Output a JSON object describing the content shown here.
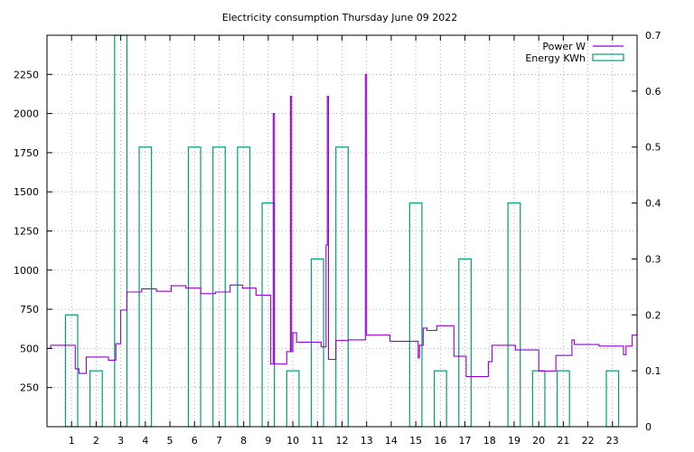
{
  "chart_data": {
    "type": "line",
    "title": "Electricity consumption Thursday June 09 2022",
    "xlim": [
      0,
      24
    ],
    "ylim_left": [
      0,
      2500
    ],
    "ylim_right": [
      0,
      0.7
    ],
    "x_ticks": [
      1,
      2,
      3,
      4,
      5,
      6,
      7,
      8,
      9,
      10,
      11,
      12,
      13,
      14,
      15,
      16,
      17,
      18,
      19,
      20,
      21,
      22,
      23
    ],
    "y_ticks_left": [
      250,
      500,
      750,
      1000,
      1250,
      1500,
      1750,
      2000,
      2250
    ],
    "y_ticks_right": [
      0,
      0.1,
      0.2,
      0.3,
      0.4,
      0.5,
      0.6,
      0.7
    ],
    "grid": true,
    "legend_position": "top-right",
    "colors": {
      "power": "#9400d3",
      "energy": "#009e73"
    },
    "series": [
      {
        "name": "Power W",
        "axis": "left",
        "style": "steps",
        "points": [
          [
            0.0,
            500
          ],
          [
            0.15,
            520
          ],
          [
            1.15,
            370
          ],
          [
            1.3,
            340
          ],
          [
            1.6,
            445
          ],
          [
            2.5,
            425
          ],
          [
            2.8,
            530
          ],
          [
            3.0,
            745
          ],
          [
            3.25,
            860
          ],
          [
            3.85,
            880
          ],
          [
            4.45,
            865
          ],
          [
            5.05,
            900
          ],
          [
            5.65,
            885
          ],
          [
            6.25,
            850
          ],
          [
            6.85,
            860
          ],
          [
            7.45,
            905
          ],
          [
            7.95,
            885
          ],
          [
            8.5,
            840
          ],
          [
            9.1,
            400
          ],
          [
            9.2,
            2000
          ],
          [
            9.25,
            400
          ],
          [
            9.75,
            480
          ],
          [
            9.9,
            2110
          ],
          [
            9.95,
            480
          ],
          [
            10.0,
            600
          ],
          [
            10.15,
            540
          ],
          [
            11.15,
            510
          ],
          [
            11.35,
            1160
          ],
          [
            11.4,
            2110
          ],
          [
            11.45,
            430
          ],
          [
            11.75,
            550
          ],
          [
            12.25,
            555
          ],
          [
            12.95,
            2250
          ],
          [
            13.0,
            585
          ],
          [
            13.95,
            545
          ],
          [
            15.1,
            440
          ],
          [
            15.15,
            520
          ],
          [
            15.3,
            630
          ],
          [
            15.45,
            615
          ],
          [
            15.85,
            645
          ],
          [
            16.55,
            450
          ],
          [
            17.05,
            320
          ],
          [
            17.95,
            415
          ],
          [
            18.1,
            520
          ],
          [
            19.05,
            490
          ],
          [
            20.0,
            355
          ],
          [
            20.7,
            455
          ],
          [
            21.35,
            555
          ],
          [
            21.45,
            525
          ],
          [
            22.45,
            515
          ],
          [
            23.45,
            460
          ],
          [
            23.55,
            515
          ],
          [
            23.8,
            585
          ],
          [
            24.0,
            585
          ]
        ]
      },
      {
        "name": "Energy KWh",
        "axis": "right",
        "style": "boxes",
        "bars": [
          [
            1,
            0.2
          ],
          [
            2,
            0.1
          ],
          [
            3,
            0.7
          ],
          [
            4,
            0.5
          ],
          [
            6,
            0.5
          ],
          [
            7,
            0.5
          ],
          [
            8,
            0.5
          ],
          [
            9,
            0.4
          ],
          [
            10,
            0.1
          ],
          [
            11,
            0.3
          ],
          [
            12,
            0.5
          ],
          [
            15,
            0.4
          ],
          [
            16,
            0.1
          ],
          [
            17,
            0.3
          ],
          [
            19,
            0.4
          ],
          [
            20,
            0.1
          ],
          [
            21,
            0.1
          ],
          [
            23,
            0.1
          ]
        ]
      }
    ]
  }
}
